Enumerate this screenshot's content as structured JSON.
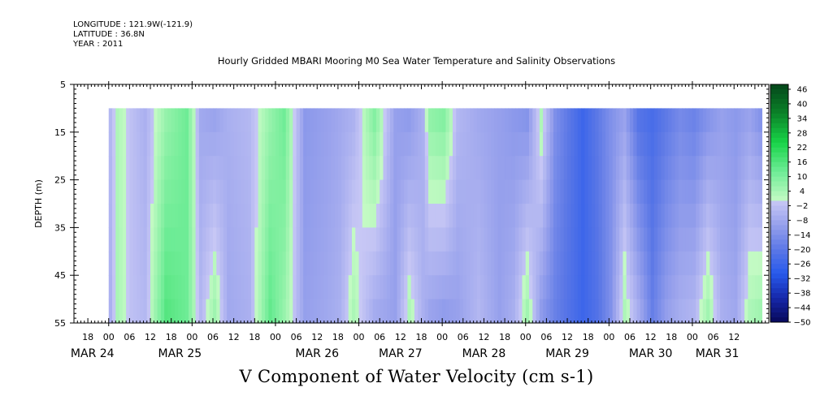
{
  "meta": {
    "longitude": "LONGITUDE : 121.9W(-121.9)",
    "latitude": "LATITUDE : 36.8N",
    "year": "YEAR : 2011"
  },
  "chart_data": {
    "type": "heatmap",
    "title": "Hourly Gridded MBARI Mooring M0 Sea Water Temperature and Salinity Observations",
    "xlabel": "V Component of Water Velocity (cm s-1)",
    "ylabel": "DEPTH (m)",
    "x_range": [
      "2011-03-23T14:00",
      "2011-03-31T22:00"
    ],
    "data_time_range": [
      "2011-03-24T00:00",
      "2011-03-31T19:00"
    ],
    "ylim": [
      55,
      5
    ],
    "data_depth_range": [
      10,
      55
    ],
    "y_ticks": [
      5,
      15,
      25,
      35,
      45,
      55
    ],
    "hour_ticks": [
      "18",
      "00",
      "06",
      "12",
      "18",
      "00",
      "06",
      "12",
      "18",
      "00",
      "06",
      "12",
      "18",
      "00",
      "06",
      "12",
      "18",
      "00",
      "06",
      "12",
      "18",
      "00",
      "06",
      "12",
      "18",
      "00",
      "06",
      "12",
      "18",
      "00",
      "06",
      "12"
    ],
    "date_labels": [
      "MAR 24",
      "MAR 25",
      "MAR 26",
      "MAR 27",
      "MAR 28",
      "MAR 29",
      "MAR 30",
      "MAR 31"
    ],
    "colorbar": {
      "levels": [
        48,
        46,
        44,
        42,
        40,
        38,
        36,
        34,
        32,
        30,
        28,
        26,
        24,
        22,
        20,
        18,
        16,
        14,
        12,
        10,
        8,
        6,
        4,
        2,
        0,
        -2,
        -4,
        -6,
        -8,
        -10,
        -12,
        -14,
        -16,
        -18,
        -20,
        -22,
        -24,
        -26,
        -28,
        -30,
        -32,
        -34,
        -36,
        -38,
        -40,
        -42,
        -44,
        -46,
        -48,
        -50
      ],
      "labels": [
        "46",
        "40",
        "34",
        "28",
        "22",
        "16",
        "10",
        "4",
        "-2",
        "-8",
        "-14",
        "-20",
        "-26",
        "-32",
        "-38",
        "-44",
        "-50"
      ]
    },
    "field": {
      "hours_from_mar24_00": [
        0,
        2,
        6,
        10,
        16,
        22,
        26,
        30,
        34,
        40,
        46,
        50,
        56,
        62,
        66,
        70,
        76,
        82,
        86,
        90,
        92,
        96,
        100,
        106,
        112,
        116,
        120,
        124,
        128,
        132,
        136,
        140,
        144,
        148,
        152,
        156,
        160,
        164,
        168,
        172,
        176,
        180,
        184,
        187
      ],
      "depth_10m": [
        -4,
        3,
        -2,
        -6,
        6,
        12,
        -8,
        -10,
        -6,
        -4,
        6,
        12,
        -12,
        -10,
        -8,
        -6,
        10,
        -10,
        -12,
        -6,
        8,
        10,
        -4,
        -8,
        -10,
        -12,
        -14,
        4,
        -14,
        -20,
        -26,
        -20,
        -14,
        -10,
        -22,
        -24,
        -20,
        -16,
        -18,
        -14,
        -10,
        -12,
        -10,
        -14
      ],
      "depth_55m": [
        -6,
        4,
        -2,
        -4,
        16,
        12,
        -4,
        6,
        -8,
        -6,
        14,
        6,
        -10,
        -8,
        -6,
        4,
        -8,
        -10,
        4,
        -6,
        -10,
        -12,
        -10,
        -4,
        -10,
        -6,
        6,
        -12,
        -18,
        -22,
        -26,
        -22,
        -14,
        4,
        -6,
        -18,
        -10,
        -6,
        -4,
        6,
        -6,
        -8,
        4,
        6
      ]
    }
  }
}
